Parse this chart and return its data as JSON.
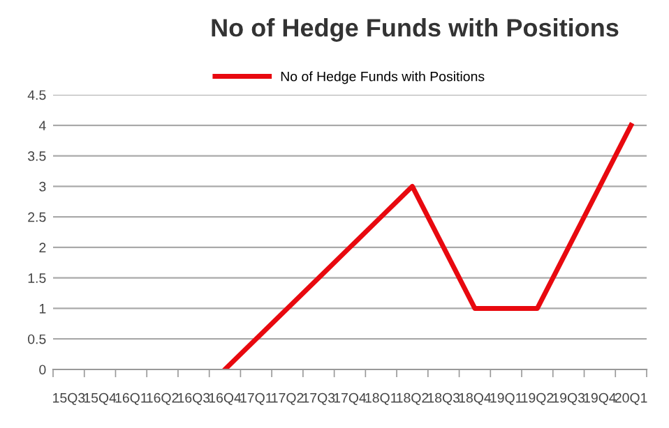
{
  "chart_data": {
    "type": "line",
    "title": "No of Hedge Funds with Positions",
    "categories": [
      "15Q3",
      "15Q4",
      "16Q1",
      "16Q2",
      "16Q3",
      "16Q4",
      "17Q1",
      "17Q2",
      "17Q3",
      "17Q4",
      "18Q1",
      "18Q2",
      "18Q3",
      "18Q4",
      "19Q1",
      "19Q2",
      "19Q3",
      "19Q4",
      "20Q1"
    ],
    "series": [
      {
        "name": "No of Hedge Funds with Positions",
        "color": "#e8090f",
        "values": [
          null,
          null,
          null,
          null,
          null,
          0,
          0.5,
          1,
          1.5,
          2,
          2.5,
          3,
          2,
          1,
          1,
          1,
          2,
          3,
          4
        ]
      }
    ],
    "ylim": [
      0,
      4.5
    ],
    "yticks": [
      0,
      0.5,
      1,
      1.5,
      2,
      2.5,
      3,
      3.5,
      4,
      4.5
    ],
    "grid": "y",
    "legend": "top",
    "marker": "none",
    "line_style": "solid"
  }
}
